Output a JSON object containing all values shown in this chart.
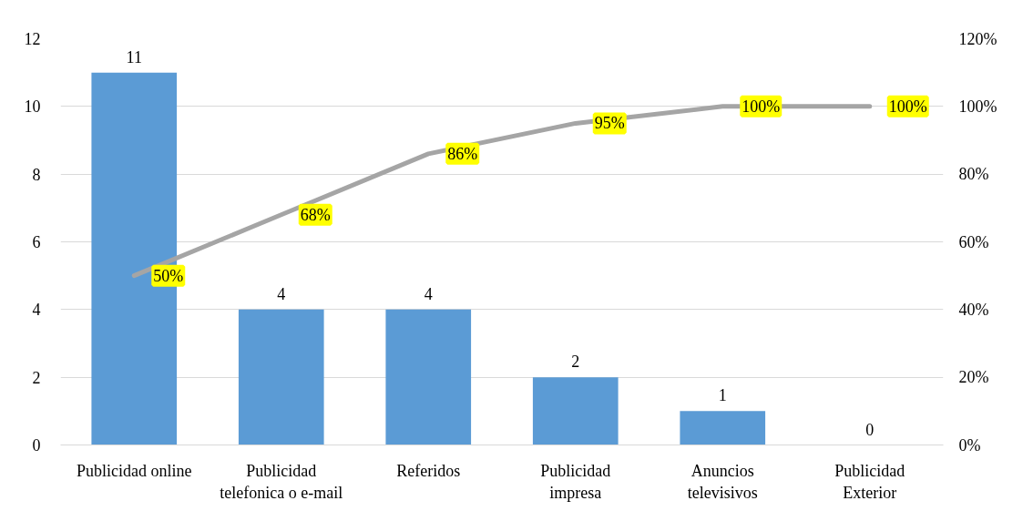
{
  "chart_data": {
    "type": "bar",
    "categories": [
      "Publicidad online",
      "Publicidad telefonica o e-mail",
      "Referidos",
      "Publicidad impresa",
      "Anuncios televisivos",
      "Publicidad Exterior"
    ],
    "series": [
      {
        "color": "#5b9bd5",
        "values": [
          11,
          4,
          4,
          2,
          1,
          0
        ],
        "value_labels": [
          "11",
          "4",
          "4",
          "2",
          "1",
          "0"
        ]
      },
      {
        "type": "line",
        "axis": "y2",
        "color": "#a5a5a5",
        "values": [
          50,
          68,
          86,
          95,
          100,
          100
        ],
        "value_labels": [
          "50%",
          "68%",
          "86%",
          "95%",
          "100%",
          "100%"
        ]
      }
    ],
    "ylim": [
      0,
      12
    ],
    "yticks": [
      0,
      2,
      4,
      6,
      8,
      10,
      12
    ],
    "y2lim": [
      0,
      120
    ],
    "y2ticks": [
      {
        "value": 0,
        "label": "0%"
      },
      {
        "value": 20,
        "label": "20%"
      },
      {
        "value": 40,
        "label": "40%"
      },
      {
        "value": 60,
        "label": "60%"
      },
      {
        "value": 80,
        "label": "80%"
      },
      {
        "value": 100,
        "label": "100%"
      },
      {
        "value": 120,
        "label": "120%"
      }
    ],
    "grid": "y"
  }
}
